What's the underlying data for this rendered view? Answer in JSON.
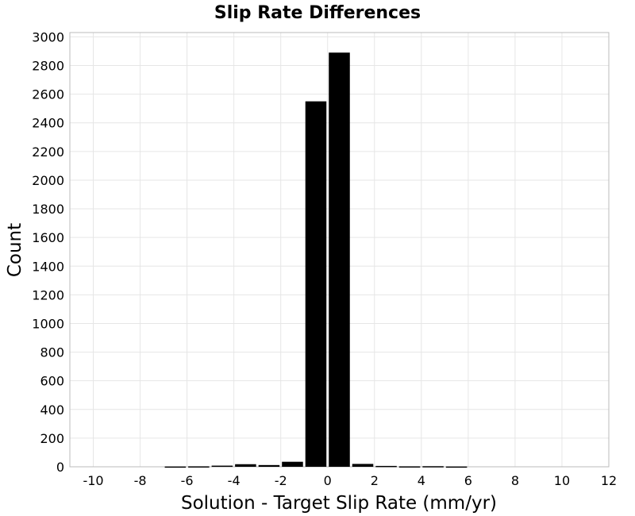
{
  "chart_data": {
    "type": "bar",
    "title": "Slip Rate Differences",
    "xlabel": "Solution - Target Slip Rate (mm/yr)",
    "ylabel": "Count",
    "xlim": [
      -11,
      12
    ],
    "ylim": [
      0,
      3030
    ],
    "xticks": [
      "-10",
      "-8",
      "-6",
      "-4",
      "-2",
      "0",
      "2",
      "4",
      "6",
      "8",
      "10",
      "12"
    ],
    "xtick_values": [
      -10,
      -8,
      -6,
      -4,
      -2,
      0,
      2,
      4,
      6,
      8,
      10,
      12
    ],
    "yticks": [
      "0",
      "200",
      "400",
      "600",
      "800",
      "1000",
      "1200",
      "1400",
      "1600",
      "1800",
      "2000",
      "2200",
      "2400",
      "2600",
      "2800",
      "3000"
    ],
    "ytick_values": [
      0,
      200,
      400,
      600,
      800,
      1000,
      1200,
      1400,
      1600,
      1800,
      2000,
      2200,
      2400,
      2600,
      2800,
      3000
    ],
    "bin_width": 1,
    "bin_centers": [
      -6.5,
      -5.5,
      -4.5,
      -3.5,
      -2.5,
      -1.5,
      -0.5,
      0.5,
      1.5,
      2.5,
      3.5,
      4.5,
      5.5
    ],
    "values": [
      2,
      3,
      8,
      18,
      12,
      35,
      2550,
      2890,
      20,
      6,
      3,
      4,
      2
    ],
    "grid": true,
    "colors": {
      "bar": "#000000",
      "bar_edge": "#ffffff",
      "grid": "#e6e6e6",
      "frame": "#bbbbbb"
    }
  }
}
